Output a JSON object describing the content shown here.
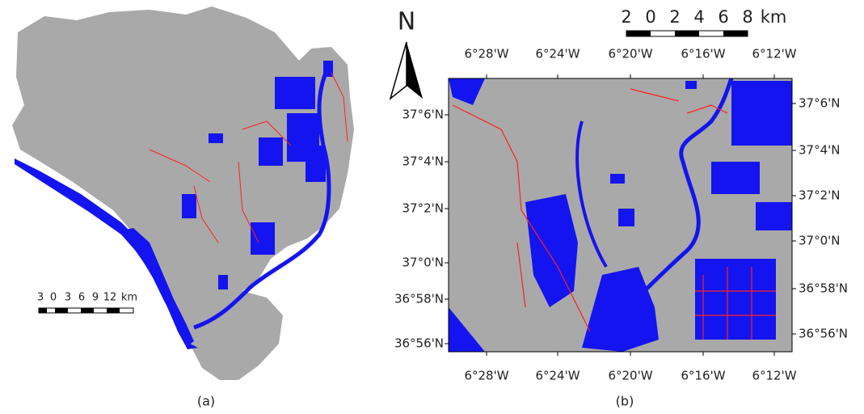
{
  "panel_a": {
    "scale_labels": [
      "3",
      "0",
      "3",
      "6",
      "9",
      "12",
      "km"
    ],
    "caption": "(a)"
  },
  "panel_b": {
    "north": "N",
    "scale_labels": [
      "2",
      "0",
      "2",
      "4",
      "6",
      "8",
      "km"
    ],
    "top_labels": [
      "6°28'W",
      "6°24'W",
      "6°20'W",
      "6°16'W",
      "6°12'W"
    ],
    "bottom_labels": [
      "6°28'W",
      "6°24'W",
      "6°20'W",
      "6°16'W",
      "6°12'W"
    ],
    "left_labels": [
      "37°6'N",
      "37°4'N",
      "37°2'N",
      "37°0'N",
      "36°58'N",
      "36°56'N"
    ],
    "right_labels": [
      "37°6'N",
      "37°4'N",
      "37°2'N",
      "37°0'N",
      "36°58'N",
      "36°56'N"
    ],
    "caption": "(b)"
  }
}
